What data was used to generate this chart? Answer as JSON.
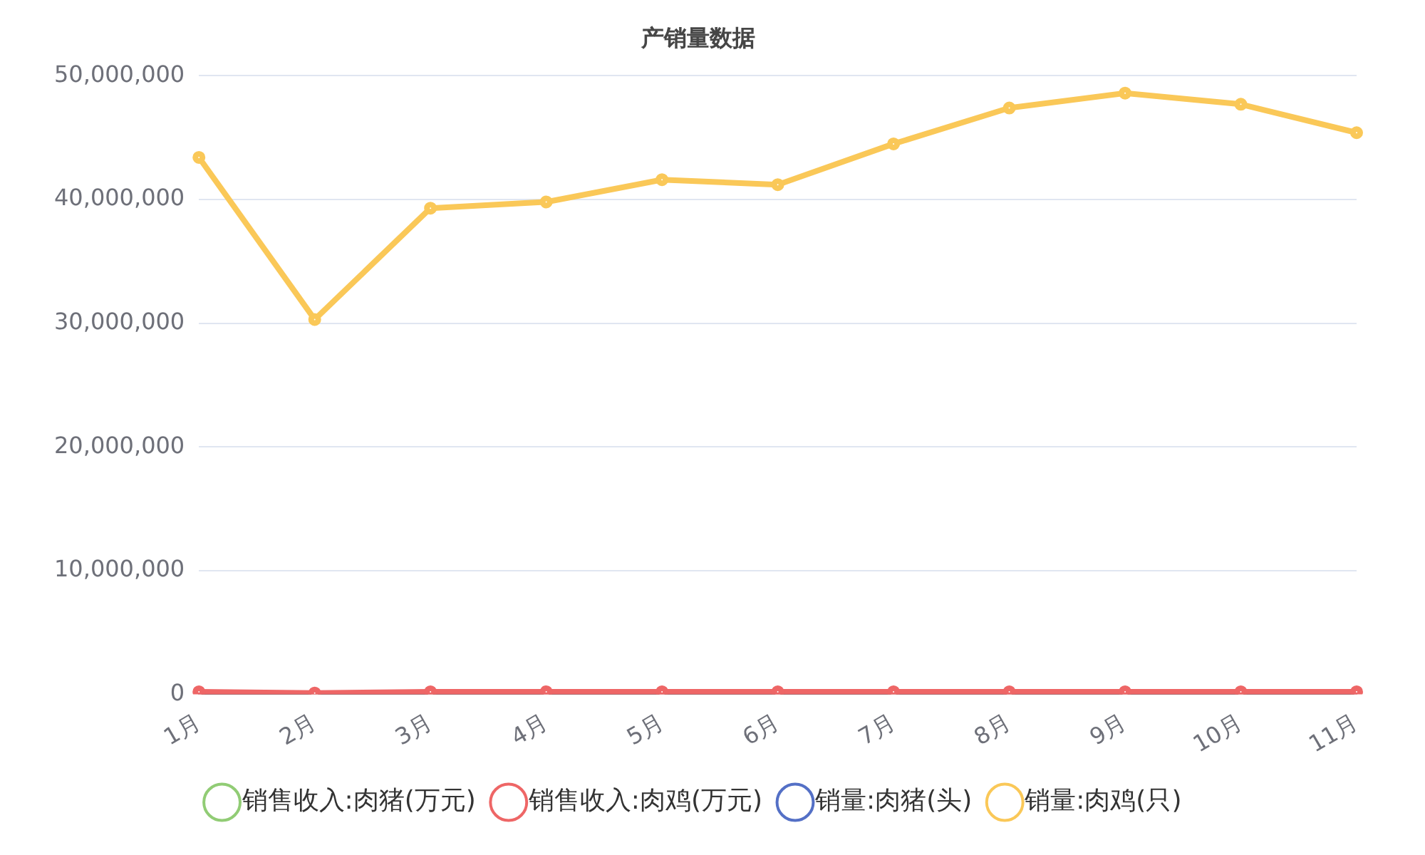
{
  "chart_data": {
    "type": "line",
    "title": "产销量数据",
    "categories": [
      "1月",
      "2月",
      "3月",
      "4月",
      "5月",
      "6月",
      "7月",
      "8月",
      "9月",
      "10月",
      "11月"
    ],
    "series": [
      {
        "name": "销售收入:肉猪(万元)",
        "color": "#91cc75",
        "values": [
          null,
          null,
          null,
          null,
          null,
          null,
          null,
          null,
          null,
          null,
          null
        ]
      },
      {
        "name": "销售收入:肉鸡(万元)",
        "color": "#ee6666",
        "values": [
          200000,
          100000,
          200000,
          200000,
          200000,
          200000,
          200000,
          200000,
          200000,
          200000,
          200000
        ]
      },
      {
        "name": "销量:肉猪(头)",
        "color": "#5470c6",
        "values": [
          null,
          null,
          null,
          null,
          null,
          null,
          null,
          null,
          null,
          null,
          null
        ]
      },
      {
        "name": "销量:肉鸡(只)",
        "color": "#fac858",
        "values": [
          43400000,
          30300000,
          39300000,
          39800000,
          41600000,
          41200000,
          44500000,
          47400000,
          48600000,
          47700000,
          45400000
        ]
      }
    ],
    "ylim": [
      0,
      50000000
    ],
    "yticks": [
      {
        "value": 0,
        "label": "0"
      },
      {
        "value": 10000000,
        "label": "10,000,000"
      },
      {
        "value": 20000000,
        "label": "20,000,000"
      },
      {
        "value": 30000000,
        "label": "30,000,000"
      },
      {
        "value": 40000000,
        "label": "40,000,000"
      },
      {
        "value": 50000000,
        "label": "50,000,000"
      }
    ],
    "grid": "y",
    "legend": "bottom",
    "marker": "circle",
    "line_style": "solid"
  }
}
